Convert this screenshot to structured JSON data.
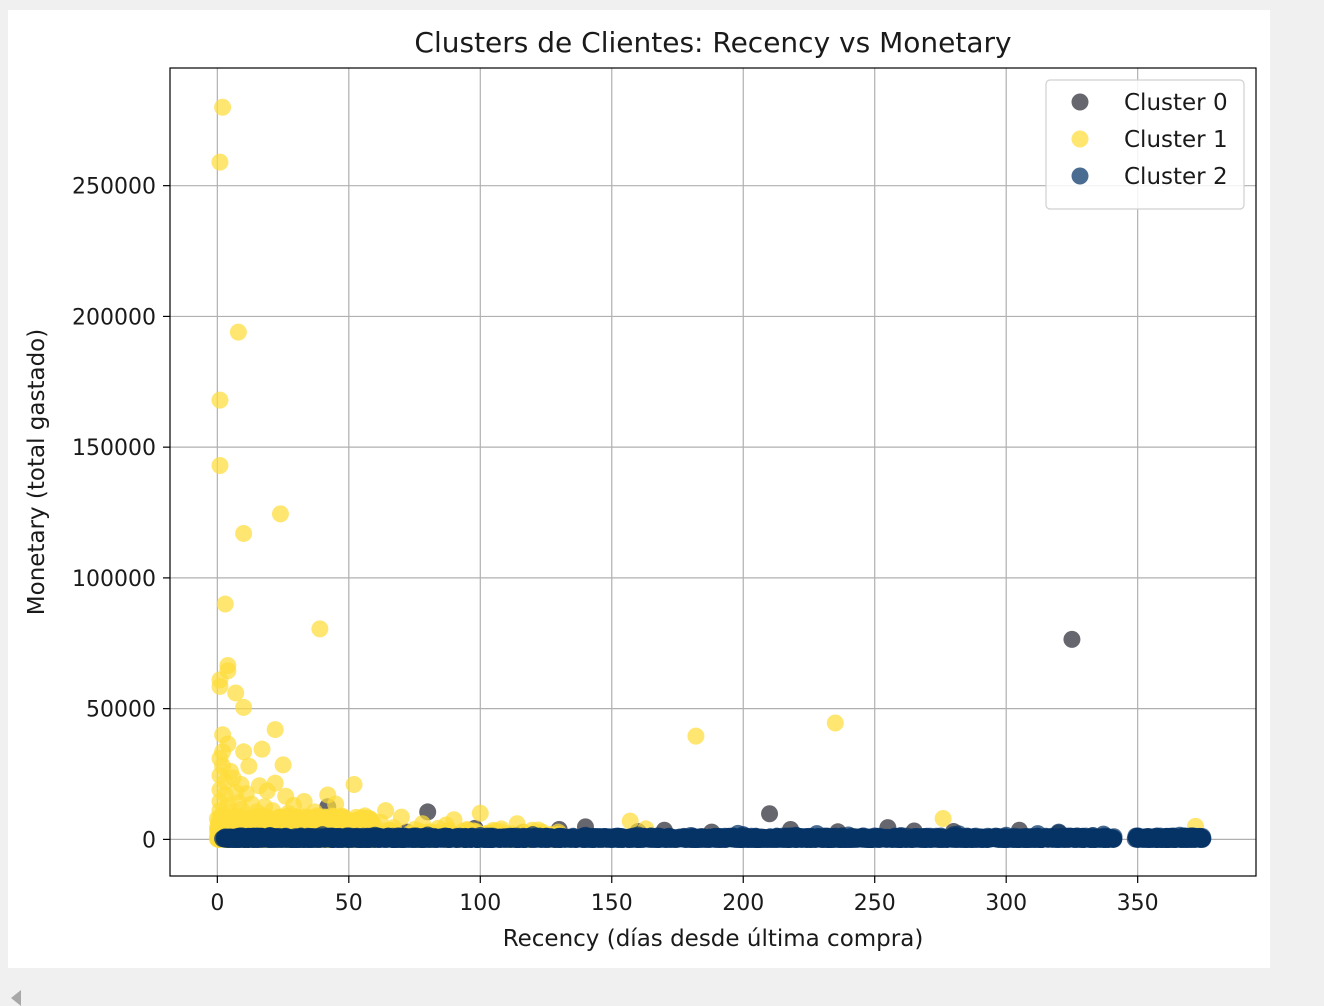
{
  "chart_data": {
    "type": "scatter",
    "title": "Clusters de Clientes: Recency vs Monetary",
    "xlabel": "Recency (días desde última compra)",
    "ylabel": "Monetary (total gastado)",
    "xlim": [
      -18,
      395
    ],
    "ylim": [
      -14000,
      295000
    ],
    "xticks": [
      0,
      50,
      100,
      150,
      200,
      250,
      300,
      350
    ],
    "xtick_labels": [
      "0",
      "50",
      "100",
      "150",
      "200",
      "250",
      "300",
      "350"
    ],
    "yticks": [
      0,
      50000,
      100000,
      150000,
      200000,
      250000
    ],
    "ytick_labels": [
      "0",
      "50000",
      "100000",
      "150000",
      "200000",
      "250000"
    ],
    "grid": true,
    "legend_position": "top-right",
    "series": [
      {
        "name": "Cluster 0",
        "color": "#2b2b36",
        "points": [
          [
            325,
            76500
          ],
          [
            80,
            10500
          ],
          [
            210,
            9800
          ],
          [
            42,
            12500
          ],
          [
            255,
            4500
          ],
          [
            305,
            3500
          ],
          [
            280,
            3000
          ],
          [
            140,
            4800
          ],
          [
            130,
            3800
          ],
          [
            98,
            4200
          ],
          [
            170,
            3500
          ],
          [
            218,
            3800
          ],
          [
            265,
            3200
          ],
          [
            160,
            3000
          ],
          [
            188,
            2800
          ],
          [
            320,
            2500
          ],
          [
            116,
            2600
          ],
          [
            60,
            3000
          ],
          [
            72,
            2800
          ],
          [
            236,
            2900
          ]
        ]
      },
      {
        "name": "Cluster 1",
        "color": "#fedc3a",
        "points": [
          [
            2,
            280000
          ],
          [
            1,
            259000
          ],
          [
            8,
            194000
          ],
          [
            1,
            168000
          ],
          [
            1,
            143000
          ],
          [
            24,
            124500
          ],
          [
            10,
            117000
          ],
          [
            3,
            90000
          ],
          [
            39,
            80500
          ],
          [
            4,
            66500
          ],
          [
            4,
            64500
          ],
          [
            1,
            61000
          ],
          [
            1,
            58500
          ],
          [
            7,
            56000
          ],
          [
            10,
            50500
          ],
          [
            235,
            44500
          ],
          [
            182,
            39500
          ],
          [
            22,
            42000
          ],
          [
            2,
            40000
          ],
          [
            4,
            36500
          ],
          [
            2,
            33500
          ],
          [
            1,
            31000
          ],
          [
            10,
            33500
          ],
          [
            17,
            34500
          ],
          [
            2,
            28000
          ],
          [
            5,
            26000
          ],
          [
            12,
            28000
          ],
          [
            25,
            28500
          ],
          [
            1,
            24500
          ],
          [
            3,
            22000
          ],
          [
            6,
            23500
          ],
          [
            9,
            21000
          ],
          [
            16,
            20500
          ],
          [
            22,
            21500
          ],
          [
            52,
            21000
          ],
          [
            1,
            19000
          ],
          [
            3,
            17000
          ],
          [
            7,
            18000
          ],
          [
            11,
            17500
          ],
          [
            19,
            18500
          ],
          [
            26,
            16500
          ],
          [
            42,
            17000
          ],
          [
            1,
            14500
          ],
          [
            4,
            13000
          ],
          [
            8,
            14000
          ],
          [
            13,
            13500
          ],
          [
            18,
            12500
          ],
          [
            29,
            13000
          ],
          [
            33,
            14500
          ],
          [
            45,
            13500
          ],
          [
            1,
            11000
          ],
          [
            5,
            10500
          ],
          [
            9,
            11500
          ],
          [
            15,
            10500
          ],
          [
            21,
            11000
          ],
          [
            27,
            10000
          ],
          [
            37,
            10500
          ],
          [
            64,
            11000
          ],
          [
            100,
            10000
          ],
          [
            276,
            8000
          ],
          [
            2,
            9000
          ],
          [
            6,
            8500
          ],
          [
            11,
            8000
          ],
          [
            17,
            9000
          ],
          [
            24,
            8500
          ],
          [
            31,
            8000
          ],
          [
            38,
            9000
          ],
          [
            48,
            8500
          ],
          [
            56,
            8000
          ],
          [
            70,
            8500
          ],
          [
            90,
            7500
          ],
          [
            157,
            7000
          ],
          [
            1,
            7000
          ],
          [
            4,
            6500
          ],
          [
            8,
            6000
          ],
          [
            14,
            7000
          ],
          [
            20,
            6000
          ],
          [
            28,
            6500
          ],
          [
            35,
            6000
          ],
          [
            41,
            7000
          ],
          [
            53,
            6000
          ],
          [
            62,
            6500
          ],
          [
            78,
            6000
          ],
          [
            87,
            5500
          ],
          [
            114,
            6000
          ],
          [
            372,
            5000
          ],
          [
            3,
            5000
          ],
          [
            7,
            4500
          ],
          [
            12,
            4000
          ],
          [
            18,
            5000
          ],
          [
            23,
            4500
          ],
          [
            30,
            4000
          ],
          [
            36,
            4500
          ],
          [
            44,
            4000
          ],
          [
            50,
            4800
          ],
          [
            58,
            4000
          ],
          [
            67,
            4500
          ],
          [
            75,
            3800
          ],
          [
            84,
            4200
          ],
          [
            95,
            3800
          ],
          [
            108,
            4000
          ],
          [
            122,
            3600
          ],
          [
            163,
            4000
          ],
          [
            5,
            3000
          ],
          [
            10,
            2500
          ],
          [
            16,
            3000
          ],
          [
            25,
            2800
          ],
          [
            34,
            2600
          ],
          [
            47,
            2500
          ],
          [
            55,
            2700
          ],
          [
            66,
            2400
          ],
          [
            82,
            2600
          ],
          [
            104,
            2500
          ],
          [
            2,
            2000
          ],
          [
            9,
            1800
          ],
          [
            20,
            1900
          ],
          [
            32,
            1700
          ],
          [
            43,
            1800
          ],
          [
            6,
            1200
          ],
          [
            14,
            1000
          ],
          [
            27,
            1100
          ],
          [
            39,
            900
          ],
          [
            1,
            500
          ],
          [
            3,
            300
          ],
          [
            0,
            200
          ]
        ]
      },
      {
        "name": "Cluster 2",
        "color": "#053366",
        "points": [
          [
            5,
            600
          ],
          [
            15,
            900
          ],
          [
            25,
            500
          ],
          [
            35,
            1100
          ],
          [
            45,
            700
          ],
          [
            55,
            800
          ],
          [
            65,
            1200
          ],
          [
            75,
            500
          ],
          [
            85,
            900
          ],
          [
            95,
            1000
          ],
          [
            105,
            600
          ],
          [
            115,
            800
          ],
          [
            125,
            1100
          ],
          [
            135,
            500
          ],
          [
            145,
            900
          ],
          [
            155,
            700
          ],
          [
            165,
            1000
          ],
          [
            175,
            600
          ],
          [
            185,
            800
          ],
          [
            195,
            1200
          ],
          [
            205,
            500
          ],
          [
            215,
            900
          ],
          [
            225,
            700
          ],
          [
            235,
            1000
          ],
          [
            245,
            600
          ],
          [
            255,
            800
          ],
          [
            265,
            1100
          ],
          [
            275,
            500
          ],
          [
            285,
            900
          ],
          [
            295,
            700
          ],
          [
            305,
            1000
          ],
          [
            315,
            600
          ],
          [
            320,
            2800
          ],
          [
            325,
            800
          ],
          [
            333,
            1500
          ],
          [
            337,
            2000
          ],
          [
            340,
            700
          ],
          [
            350,
            500
          ],
          [
            356,
            1000
          ],
          [
            362,
            700
          ],
          [
            368,
            1200
          ],
          [
            374,
            600
          ],
          [
            10,
            300
          ],
          [
            30,
            200
          ],
          [
            50,
            400
          ],
          [
            70,
            300
          ],
          [
            90,
            200
          ],
          [
            110,
            400
          ],
          [
            130,
            300
          ],
          [
            150,
            200
          ],
          [
            170,
            400
          ],
          [
            190,
            300
          ],
          [
            210,
            200
          ],
          [
            230,
            400
          ],
          [
            250,
            300
          ],
          [
            270,
            200
          ],
          [
            290,
            400
          ],
          [
            310,
            300
          ],
          [
            330,
            200
          ],
          [
            358,
            300
          ],
          [
            20,
            1500
          ],
          [
            40,
            1800
          ],
          [
            60,
            1600
          ],
          [
            80,
            1700
          ],
          [
            100,
            1500
          ],
          [
            120,
            1800
          ],
          [
            140,
            1600
          ],
          [
            160,
            1700
          ],
          [
            180,
            1500
          ],
          [
            200,
            1800
          ],
          [
            220,
            1600
          ],
          [
            240,
            1700
          ],
          [
            260,
            1500
          ],
          [
            280,
            1800
          ],
          [
            300,
            1600
          ],
          [
            366,
            1600
          ],
          [
            228,
            2200
          ],
          [
            198,
            2300
          ],
          [
            282,
            2100
          ],
          [
            312,
            2200
          ]
        ]
      }
    ],
    "dense_bands": [
      {
        "series": "Cluster 1",
        "x": [
          0,
          60
        ],
        "y": [
          0,
          9000
        ],
        "count": 900
      },
      {
        "series": "Cluster 1",
        "x": [
          60,
          130
        ],
        "y": [
          0,
          3500
        ],
        "count": 160
      },
      {
        "series": "Cluster 2",
        "x": [
          2,
          341
        ],
        "y": [
          0,
          1300
        ],
        "count": 2600
      },
      {
        "series": "Cluster 2",
        "x": [
          349,
          375
        ],
        "y": [
          0,
          1300
        ],
        "count": 260
      }
    ]
  }
}
